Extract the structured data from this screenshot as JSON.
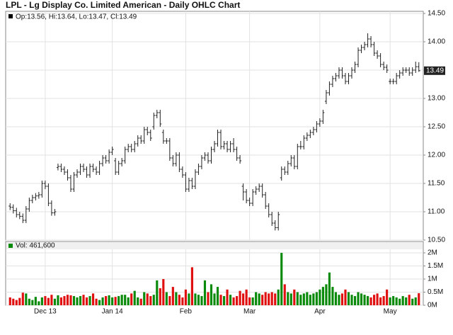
{
  "chart_data": [
    {
      "type": "ohlc",
      "title": "LPL - Lg Display Co. Limited American - Daily OHLC Chart",
      "legend": "Op:13.56, Hi:13.64, Lo:13.47, Cl:13.49",
      "color": "#222222",
      "categories": [
        null,
        null,
        null,
        null,
        null,
        null,
        null,
        null,
        null,
        null,
        null,
        "Dec 13",
        null,
        null,
        null,
        null,
        null,
        null,
        null,
        null,
        null,
        null,
        null,
        null,
        null,
        null,
        null,
        null,
        null,
        null,
        null,
        null,
        "Jan 14",
        null,
        null,
        null,
        null,
        null,
        null,
        null,
        null,
        null,
        null,
        null,
        null,
        null,
        null,
        null,
        null,
        null,
        null,
        null,
        null,
        null,
        null,
        "Feb",
        null,
        null,
        null,
        null,
        null,
        null,
        null,
        null,
        null,
        null,
        null,
        null,
        null,
        null,
        null,
        null,
        null,
        null,
        null,
        "Mar",
        null,
        null,
        null,
        null,
        null,
        null,
        null,
        null,
        null,
        null,
        null,
        null,
        null,
        null,
        null,
        null,
        null,
        null,
        null,
        null,
        null,
        "Apr",
        null,
        null,
        null,
        null,
        null,
        null,
        null,
        null,
        null,
        null,
        null,
        null,
        null,
        null,
        null,
        null,
        null,
        null,
        null,
        null,
        null,
        "May",
        null,
        null,
        null,
        null,
        null,
        null,
        null,
        null,
        null
      ],
      "ohlc": [
        [
          11.1,
          11.15,
          11.03,
          11.08
        ],
        [
          11.08,
          11.13,
          10.97,
          11.02
        ],
        [
          11.02,
          11.07,
          10.9,
          10.95
        ],
        [
          10.95,
          11.0,
          10.87,
          10.92
        ],
        [
          10.92,
          10.97,
          10.8,
          10.85
        ],
        [
          10.85,
          11.1,
          10.8,
          11.05
        ],
        [
          11.05,
          11.25,
          11.0,
          11.2
        ],
        [
          11.2,
          11.3,
          11.15,
          11.25
        ],
        [
          11.25,
          11.33,
          11.2,
          11.28
        ],
        [
          11.28,
          11.35,
          11.23,
          11.3
        ],
        [
          11.3,
          11.55,
          11.25,
          11.5
        ],
        [
          11.5,
          11.55,
          11.4,
          11.45
        ],
        [
          11.45,
          11.5,
          11.1,
          11.15
        ],
        [
          11.15,
          11.2,
          10.93,
          10.98
        ],
        [
          10.98,
          11.05,
          10.93,
          11.0
        ],
        [
          11.78,
          11.85,
          11.73,
          11.8
        ],
        [
          11.8,
          11.85,
          11.7,
          11.75
        ],
        [
          11.75,
          11.8,
          11.65,
          11.7
        ],
        [
          11.7,
          11.75,
          11.55,
          11.6
        ],
        [
          11.6,
          11.65,
          11.35,
          11.4
        ],
        [
          11.4,
          11.7,
          11.35,
          11.65
        ],
        [
          11.65,
          11.75,
          11.6,
          11.7
        ],
        [
          11.7,
          11.85,
          11.65,
          11.8
        ],
        [
          11.8,
          11.85,
          11.7,
          11.75
        ],
        [
          11.75,
          11.8,
          11.6,
          11.65
        ],
        [
          11.65,
          11.85,
          11.6,
          11.8
        ],
        [
          11.8,
          11.85,
          11.7,
          11.75
        ],
        [
          11.75,
          11.8,
          11.65,
          11.7
        ],
        [
          11.7,
          11.9,
          11.65,
          11.85
        ],
        [
          11.85,
          12.0,
          11.8,
          11.95
        ],
        [
          11.95,
          12.0,
          11.85,
          11.9
        ],
        [
          11.9,
          12.1,
          11.85,
          12.05
        ],
        [
          12.05,
          12.15,
          12.0,
          12.1
        ],
        [
          11.9,
          11.95,
          11.65,
          11.7
        ],
        [
          11.7,
          11.9,
          11.65,
          11.85
        ],
        [
          11.85,
          11.95,
          11.8,
          11.9
        ],
        [
          11.9,
          12.15,
          11.85,
          12.1
        ],
        [
          12.1,
          12.2,
          12.05,
          12.15
        ],
        [
          12.15,
          12.2,
          12.05,
          12.1
        ],
        [
          12.1,
          12.25,
          12.05,
          12.2
        ],
        [
          12.2,
          12.35,
          12.15,
          12.3
        ],
        [
          12.3,
          12.35,
          12.2,
          12.25
        ],
        [
          12.25,
          12.5,
          12.2,
          12.45
        ],
        [
          12.45,
          12.5,
          12.35,
          12.4
        ],
        [
          12.4,
          12.45,
          12.25,
          12.3
        ],
        [
          12.5,
          12.75,
          12.45,
          12.7
        ],
        [
          12.7,
          12.8,
          12.65,
          12.75
        ],
        [
          12.75,
          12.8,
          12.5,
          12.55
        ],
        [
          12.4,
          12.45,
          12.2,
          12.25
        ],
        [
          12.25,
          12.3,
          12.2,
          12.25
        ],
        [
          12.25,
          12.3,
          11.9,
          11.95
        ],
        [
          11.95,
          12.0,
          11.8,
          11.85
        ],
        [
          11.85,
          12.05,
          11.8,
          12.0
        ],
        [
          12.0,
          12.05,
          11.7,
          11.75
        ],
        [
          11.75,
          11.8,
          11.6,
          11.65
        ],
        [
          11.65,
          11.7,
          11.35,
          11.4
        ],
        [
          11.4,
          11.6,
          11.35,
          11.55
        ],
        [
          11.55,
          11.6,
          11.4,
          11.45
        ],
        [
          11.45,
          11.75,
          11.4,
          11.7
        ],
        [
          11.7,
          11.85,
          11.65,
          11.8
        ],
        [
          11.8,
          12.0,
          11.75,
          11.95
        ],
        [
          11.95,
          12.05,
          11.9,
          12.0
        ],
        [
          12.0,
          12.05,
          11.85,
          11.9
        ],
        [
          11.9,
          12.15,
          11.85,
          12.1
        ],
        [
          12.1,
          12.25,
          12.05,
          12.2
        ],
        [
          12.2,
          12.45,
          12.15,
          12.4
        ],
        [
          12.4,
          12.45,
          12.1,
          12.15
        ],
        [
          12.15,
          12.25,
          12.1,
          12.2
        ],
        [
          12.2,
          12.25,
          12.05,
          12.1
        ],
        [
          12.1,
          12.25,
          12.05,
          12.2
        ],
        [
          12.2,
          12.3,
          12.05,
          12.1
        ],
        [
          12.1,
          12.15,
          11.9,
          11.95
        ],
        [
          11.95,
          12.0,
          11.85,
          11.9
        ],
        [
          11.45,
          11.5,
          11.2,
          11.35
        ],
        [
          11.35,
          11.4,
          11.15,
          11.2
        ],
        [
          11.2,
          11.25,
          11.1,
          11.15
        ],
        [
          11.15,
          11.4,
          11.1,
          11.35
        ],
        [
          11.35,
          11.45,
          11.3,
          11.4
        ],
        [
          11.4,
          11.5,
          11.35,
          11.45
        ],
        [
          11.45,
          11.5,
          11.25,
          11.3
        ],
        [
          11.3,
          11.35,
          11.05,
          11.1
        ],
        [
          11.1,
          11.15,
          10.9,
          10.95
        ],
        [
          10.95,
          11.0,
          10.75,
          10.8
        ],
        [
          10.8,
          10.85,
          10.67,
          10.72
        ],
        [
          10.72,
          11.0,
          10.67,
          10.95
        ],
        [
          11.6,
          11.8,
          11.55,
          11.75
        ],
        [
          11.75,
          11.8,
          11.65,
          11.7
        ],
        [
          11.7,
          11.9,
          11.65,
          11.85
        ],
        [
          11.85,
          12.0,
          11.8,
          11.95
        ],
        [
          11.95,
          12.0,
          11.75,
          11.8
        ],
        [
          11.8,
          12.2,
          11.75,
          12.15
        ],
        [
          12.15,
          12.25,
          12.1,
          12.15
        ],
        [
          12.15,
          12.35,
          12.1,
          12.3
        ],
        [
          12.3,
          12.4,
          12.25,
          12.35
        ],
        [
          12.35,
          12.45,
          12.3,
          12.4
        ],
        [
          12.4,
          12.5,
          12.35,
          12.45
        ],
        [
          12.45,
          12.6,
          12.4,
          12.55
        ],
        [
          12.55,
          12.65,
          12.5,
          12.6
        ],
        [
          12.6,
          12.8,
          12.55,
          12.75
        ],
        [
          12.95,
          13.15,
          12.9,
          13.1
        ],
        [
          13.1,
          13.3,
          13.05,
          13.25
        ],
        [
          13.25,
          13.4,
          13.2,
          13.35
        ],
        [
          13.35,
          13.45,
          13.3,
          13.4
        ],
        [
          13.4,
          13.55,
          13.35,
          13.5
        ],
        [
          13.5,
          13.55,
          13.35,
          13.4
        ],
        [
          13.4,
          13.45,
          13.25,
          13.3
        ],
        [
          13.3,
          13.45,
          13.25,
          13.4
        ],
        [
          13.4,
          13.55,
          13.35,
          13.5
        ],
        [
          13.5,
          13.65,
          13.45,
          13.6
        ],
        [
          13.6,
          13.9,
          13.55,
          13.85
        ],
        [
          13.85,
          13.95,
          13.8,
          13.9
        ],
        [
          13.9,
          14.0,
          13.85,
          13.95
        ],
        [
          13.95,
          14.15,
          13.9,
          14.05
        ],
        [
          14.05,
          14.1,
          13.9,
          13.95
        ],
        [
          13.95,
          14.0,
          13.75,
          13.8
        ],
        [
          13.8,
          13.85,
          13.7,
          13.75
        ],
        [
          13.75,
          13.8,
          13.55,
          13.6
        ],
        [
          13.6,
          13.65,
          13.5,
          13.55
        ],
        [
          13.55,
          13.6,
          13.45,
          13.5
        ],
        [
          13.3,
          13.35,
          13.25,
          13.3
        ],
        [
          13.3,
          13.35,
          13.25,
          13.3
        ],
        [
          13.3,
          13.45,
          13.25,
          13.4
        ],
        [
          13.4,
          13.5,
          13.35,
          13.45
        ],
        [
          13.45,
          13.55,
          13.4,
          13.5
        ],
        [
          13.5,
          13.55,
          13.45,
          13.5
        ],
        [
          13.5,
          13.55,
          13.4,
          13.45
        ],
        [
          13.45,
          13.55,
          13.4,
          13.5
        ],
        [
          13.5,
          13.65,
          13.45,
          13.56
        ],
        [
          13.56,
          13.64,
          13.47,
          13.49
        ]
      ],
      "ylim": [
        10.5,
        14.5
      ],
      "yticks": [
        {
          "value": 10.5,
          "label": "10.50"
        },
        {
          "value": 11,
          "label": "11.00"
        },
        {
          "value": 11.5,
          "label": "11.50"
        },
        {
          "value": 12,
          "label": "12.00"
        },
        {
          "value": 12.5,
          "label": "12.50"
        },
        {
          "value": 13,
          "label": "13.00"
        },
        {
          "value": 13.5,
          "label": "13.50"
        },
        {
          "value": 14,
          "label": "14.00"
        },
        {
          "value": 14.5,
          "label": "14.50"
        }
      ],
      "grid": true
    },
    {
      "type": "bar",
      "legend": "Vol: 461,600",
      "up_color": "#0a8a0a",
      "down_color": "#e01010",
      "values": [
        300000,
        250000,
        200000,
        280000,
        480000,
        450000,
        250000,
        200000,
        320000,
        150000,
        300000,
        350000,
        280000,
        400000,
        250000,
        380000,
        300000,
        350000,
        400000,
        380000,
        350000,
        300000,
        350000,
        400000,
        300000,
        350000,
        450000,
        250000,
        200000,
        300000,
        350000,
        380000,
        300000,
        320000,
        350000,
        400000,
        400000,
        300000,
        450000,
        550000,
        300000,
        250000,
        500000,
        450000,
        350000,
        400000,
        950000,
        650000,
        1000000,
        500000,
        350000,
        700000,
        500000,
        400000,
        300000,
        600000,
        450000,
        1450000,
        450000,
        400000,
        350000,
        950000,
        500000,
        800000,
        450000,
        700000,
        400000,
        350000,
        600000,
        400000,
        300000,
        350000,
        550000,
        450000,
        600000,
        300000,
        300000,
        500000,
        450000,
        400000,
        500000,
        450000,
        500000,
        450000,
        600000,
        2000000,
        800000,
        500000,
        450000,
        600000,
        500000,
        400000,
        450000,
        500000,
        400000,
        450000,
        500000,
        600000,
        700000,
        800000,
        1250000,
        700000,
        500000,
        400000,
        450000,
        600000,
        500000,
        400000,
        350000,
        500000,
        450000,
        400000,
        350000,
        300000,
        400000,
        450000,
        300000,
        350000,
        600000,
        300000,
        350000,
        300000,
        250000,
        350000,
        300000,
        400000,
        250000,
        300000,
        461600
      ],
      "ylim": [
        0,
        2000000
      ],
      "yticks": [
        {
          "value": 0,
          "label": "0M"
        },
        {
          "value": 500000,
          "label": "0.5M"
        },
        {
          "value": 1000000,
          "label": "1M"
        },
        {
          "value": 1500000,
          "label": "1.5M"
        },
        {
          "value": 2000000,
          "label": "2M"
        }
      ],
      "grid": true
    }
  ]
}
